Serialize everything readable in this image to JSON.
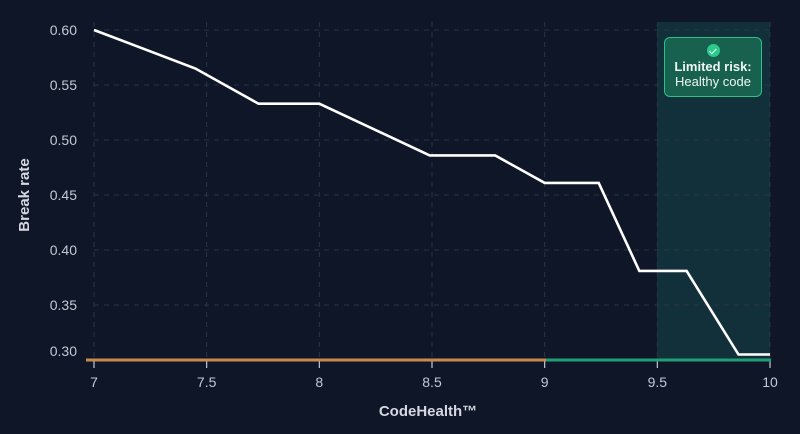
{
  "chart_data": {
    "type": "line",
    "title": "",
    "xlabel": "CodeHealth™",
    "ylabel": "Break rate",
    "xlim": [
      7,
      10
    ],
    "ylim": [
      0.295,
      0.6
    ],
    "x_ticks": [
      "7",
      "7.5",
      "8",
      "8.5",
      "9",
      "9.5",
      "10"
    ],
    "y_ticks": [
      "0.60",
      "0.55",
      "0.50",
      "0.45",
      "0.40",
      "0.35",
      "0.30"
    ],
    "grid": true,
    "series": [
      {
        "name": "Break rate",
        "color": "#ffffff",
        "x": [
          7.0,
          7.45,
          7.73,
          8.0,
          8.49,
          8.78,
          9.0,
          9.24,
          9.42,
          9.63,
          9.86,
          10.0
        ],
        "values": [
          0.6,
          0.565,
          0.533,
          0.533,
          0.486,
          0.486,
          0.461,
          0.461,
          0.381,
          0.381,
          0.305,
          0.305
        ]
      }
    ],
    "axis_segments": [
      {
        "from": 7,
        "to": 9,
        "color": "#c98a50",
        "meaning": "below healthy"
      },
      {
        "from": 9,
        "to": 10,
        "color": "#1f9e78",
        "meaning": "healthy"
      }
    ],
    "highlight_region": {
      "from": 9.5,
      "to": 10,
      "color": "#12303a"
    },
    "annotations": [
      {
        "title": "Limited risk:",
        "subtitle": "Healthy code",
        "icon": "check-circle-icon",
        "color": "#17614e",
        "border": "#2fbf8a"
      }
    ]
  },
  "badge": {
    "title": "Limited risk:",
    "subtitle": "Healthy code"
  }
}
